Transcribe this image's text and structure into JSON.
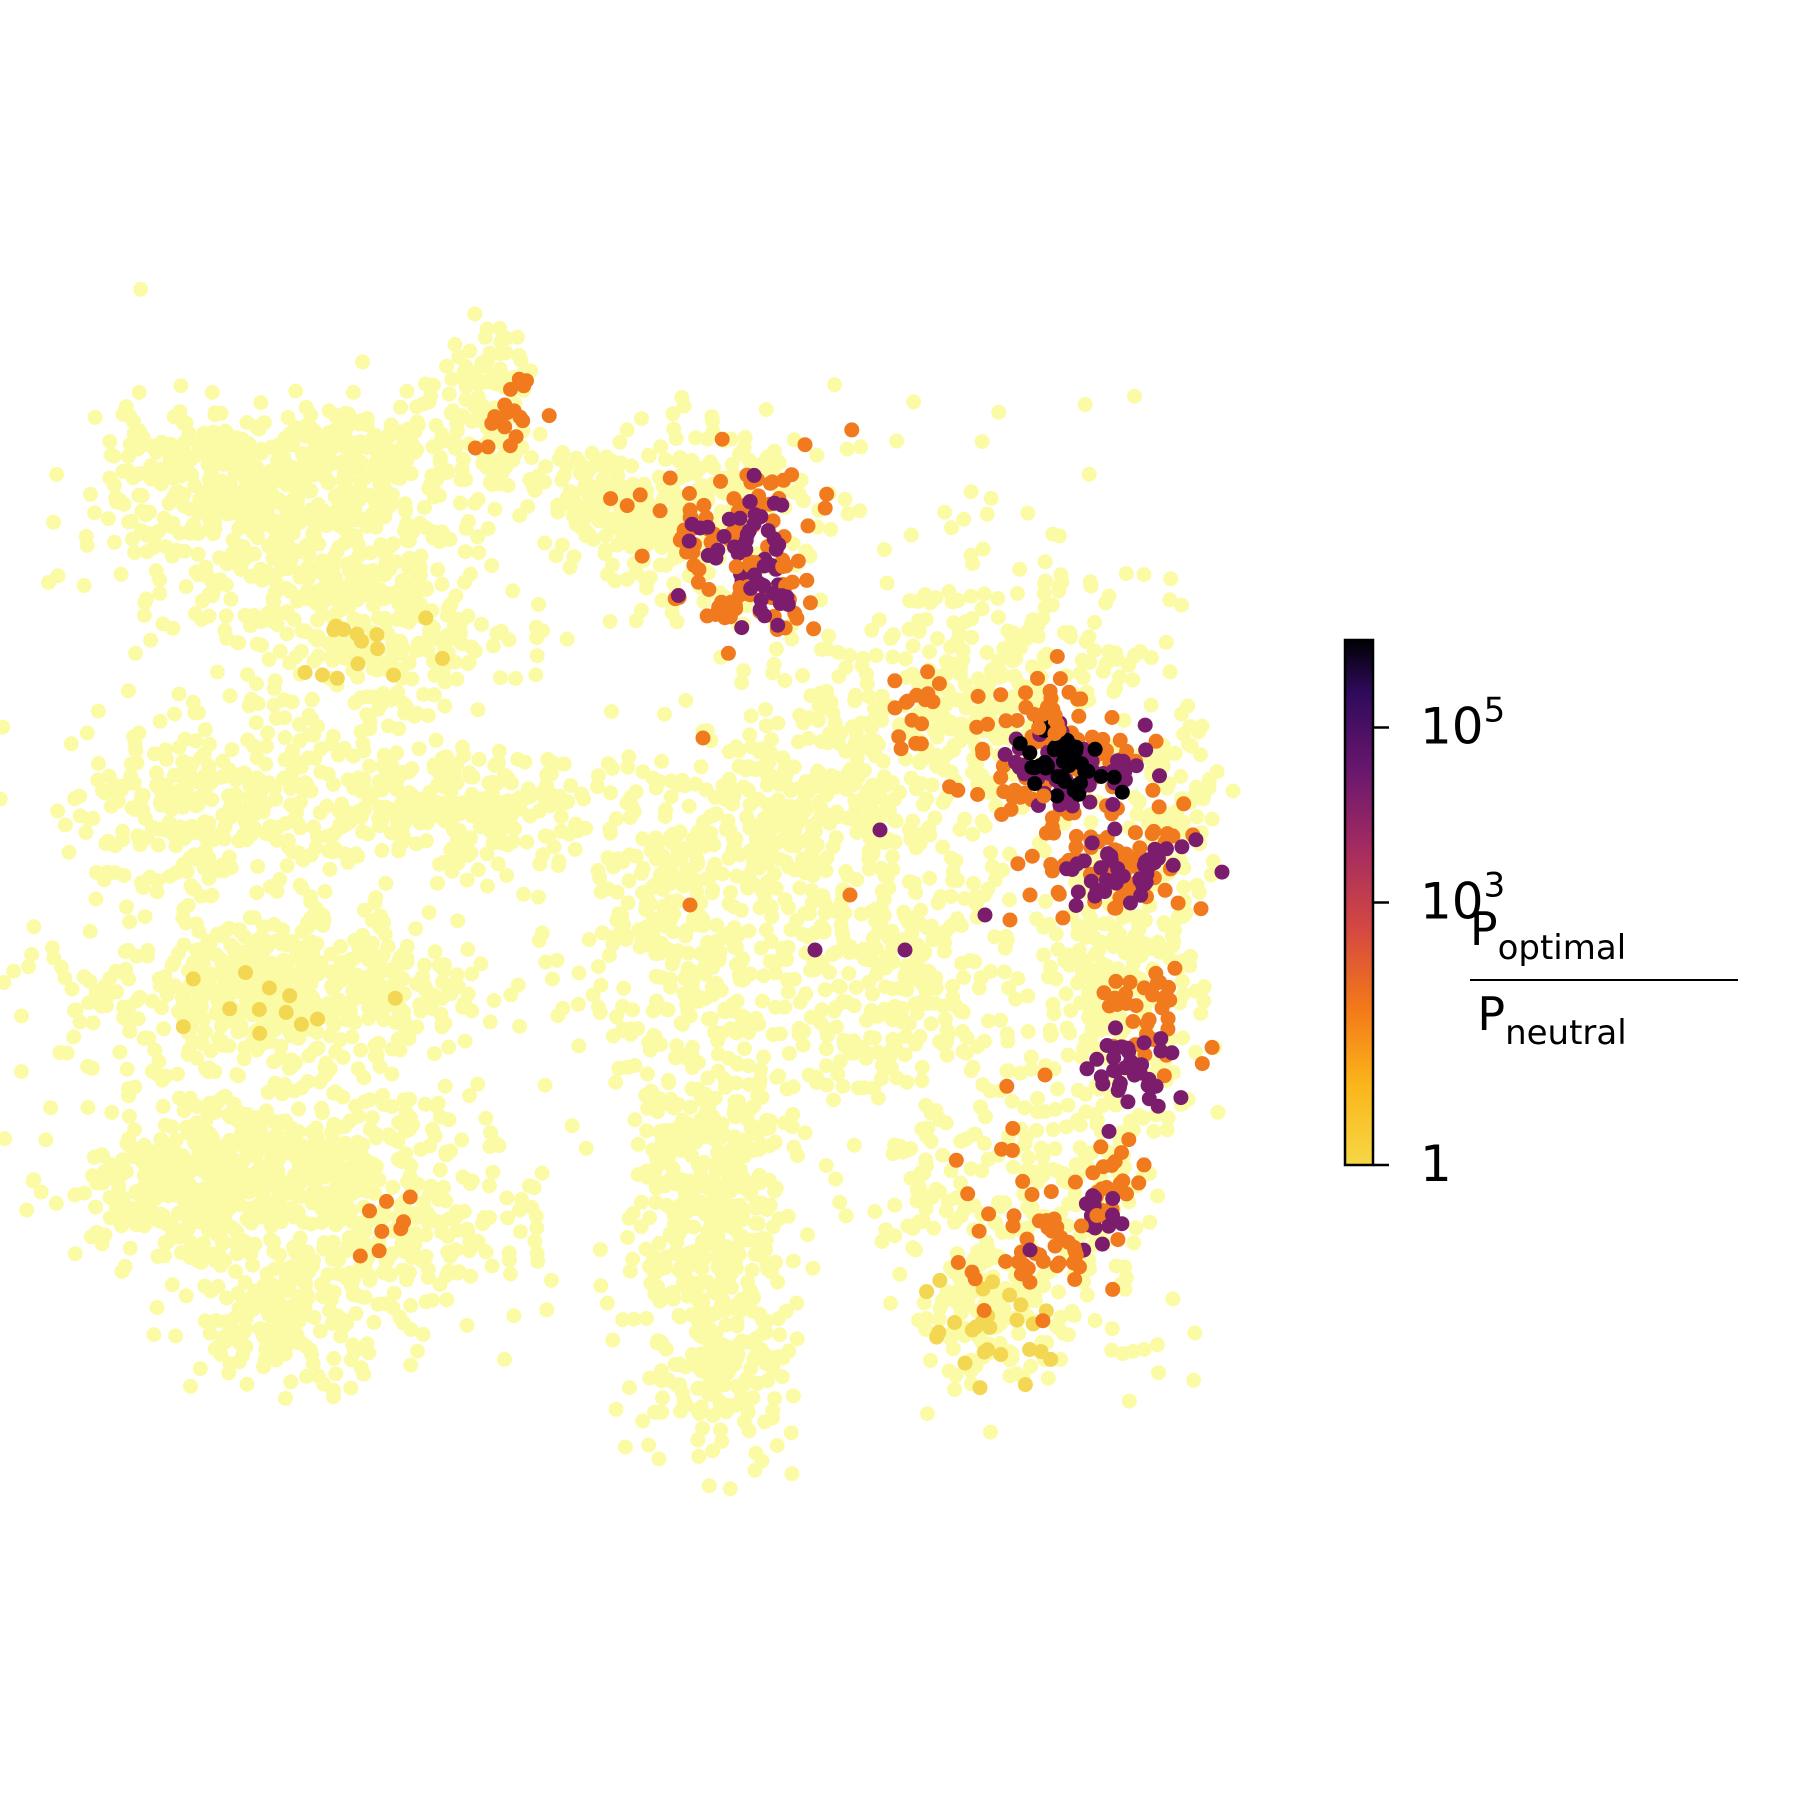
{
  "chart_data": {
    "type": "scatter",
    "title": "",
    "xlabel": "",
    "ylabel": "",
    "axes_visible": false,
    "grid": false,
    "colormap": "inferno_r",
    "color_scale": "log",
    "marker_colors": {
      "background": "#fbfba6",
      "low": "#f3d651",
      "mid": "#f07a1d",
      "high": "#7b1d6c",
      "max": "#000004"
    },
    "note": "Embedding scatter: axes are hidden and no x/y data values are printed; points are low-dimensional embedding positions. Dense clusters summarized below with approximate enrichment (color) values.",
    "clusters": [
      {
        "region": "upper-left lobe",
        "enrichment": 1
      },
      {
        "region": "left middle band",
        "enrichment": 1
      },
      {
        "region": "lower-left lobe",
        "enrichment": 1
      },
      {
        "region": "center stalk",
        "enrichment": 1
      },
      {
        "region": "top-center cluster",
        "enrichment": 1000
      },
      {
        "region": "right core cluster",
        "enrichment": 300000
      },
      {
        "region": "right lower arc",
        "enrichment": 10000
      }
    ],
    "colorbar": {
      "scale": "log",
      "range": [
        1,
        1000000
      ],
      "ticks": [
        {
          "value": 1,
          "label": "1",
          "exp": ""
        },
        {
          "value": 1000,
          "label": "10",
          "exp": "3"
        },
        {
          "value": 100000,
          "label": "10",
          "exp": "5"
        }
      ],
      "label_numerator": {
        "base": "P",
        "sub": "optimal"
      },
      "label_denominator": {
        "base": "P",
        "sub": "neutral"
      }
    }
  }
}
